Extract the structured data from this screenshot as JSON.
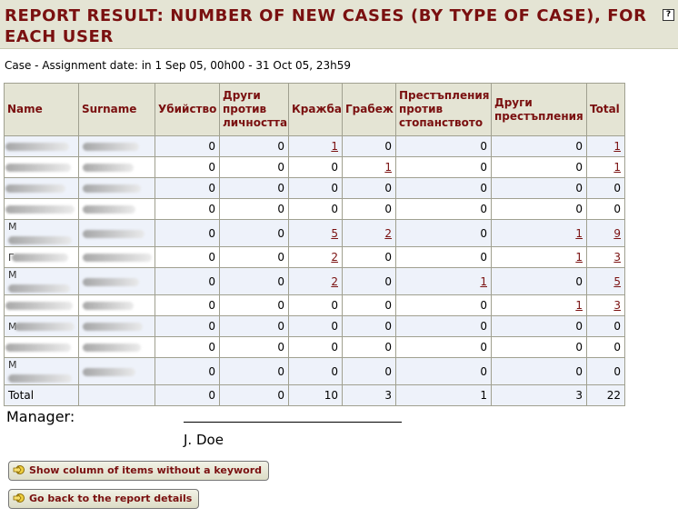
{
  "header": {
    "title": "REPORT RESULT: NUMBER OF NEW CASES (BY TYPE OF CASE), FOR EACH USER",
    "help_label": "?"
  },
  "subtitle": "Case - Assignment date: in 1 Sep 05, 00h00 - 31 Oct 05, 23h59",
  "table": {
    "columns": [
      "Name",
      "Surname",
      "Убийство",
      "Други против личността",
      "Кражба",
      "Грабеж",
      "Престъпления против стопанството",
      "Други престъпления",
      "Total"
    ],
    "rows": [
      {
        "initial": "",
        "values": [
          "0",
          "0",
          "1",
          "0",
          "0",
          "0",
          "1"
        ]
      },
      {
        "initial": "",
        "values": [
          "0",
          "0",
          "0",
          "1",
          "0",
          "0",
          "1"
        ]
      },
      {
        "initial": "",
        "values": [
          "0",
          "0",
          "0",
          "0",
          "0",
          "0",
          "0"
        ]
      },
      {
        "initial": "",
        "values": [
          "0",
          "0",
          "0",
          "0",
          "0",
          "0",
          "0"
        ]
      },
      {
        "initial": "М",
        "values": [
          "0",
          "0",
          "5",
          "2",
          "0",
          "1",
          "9"
        ]
      },
      {
        "initial": "Г",
        "values": [
          "0",
          "0",
          "2",
          "0",
          "0",
          "1",
          "3"
        ]
      },
      {
        "initial": "М",
        "values": [
          "0",
          "0",
          "2",
          "0",
          "1",
          "0",
          "5"
        ]
      },
      {
        "initial": "",
        "values": [
          "0",
          "0",
          "0",
          "0",
          "0",
          "1",
          "3"
        ]
      },
      {
        "initial": "М",
        "values": [
          "0",
          "0",
          "0",
          "0",
          "0",
          "0",
          "0"
        ]
      },
      {
        "initial": "",
        "values": [
          "0",
          "0",
          "0",
          "0",
          "0",
          "0",
          "0"
        ]
      },
      {
        "initial": "М",
        "values": [
          "0",
          "0",
          "0",
          "0",
          "0",
          "0",
          "0"
        ]
      }
    ],
    "total": {
      "label": "Total",
      "values": [
        "0",
        "0",
        "10",
        "3",
        "1",
        "3",
        "22"
      ]
    }
  },
  "signature": {
    "manager_label": "Manager:",
    "name": "J. Doe"
  },
  "buttons": {
    "show_column": "Show column of items without a keyword",
    "go_back": "Go back to the report details"
  },
  "colors": {
    "accent": "#7a1010",
    "header_bg": "#e4e4d4",
    "row_alt": "#eef2fa"
  }
}
